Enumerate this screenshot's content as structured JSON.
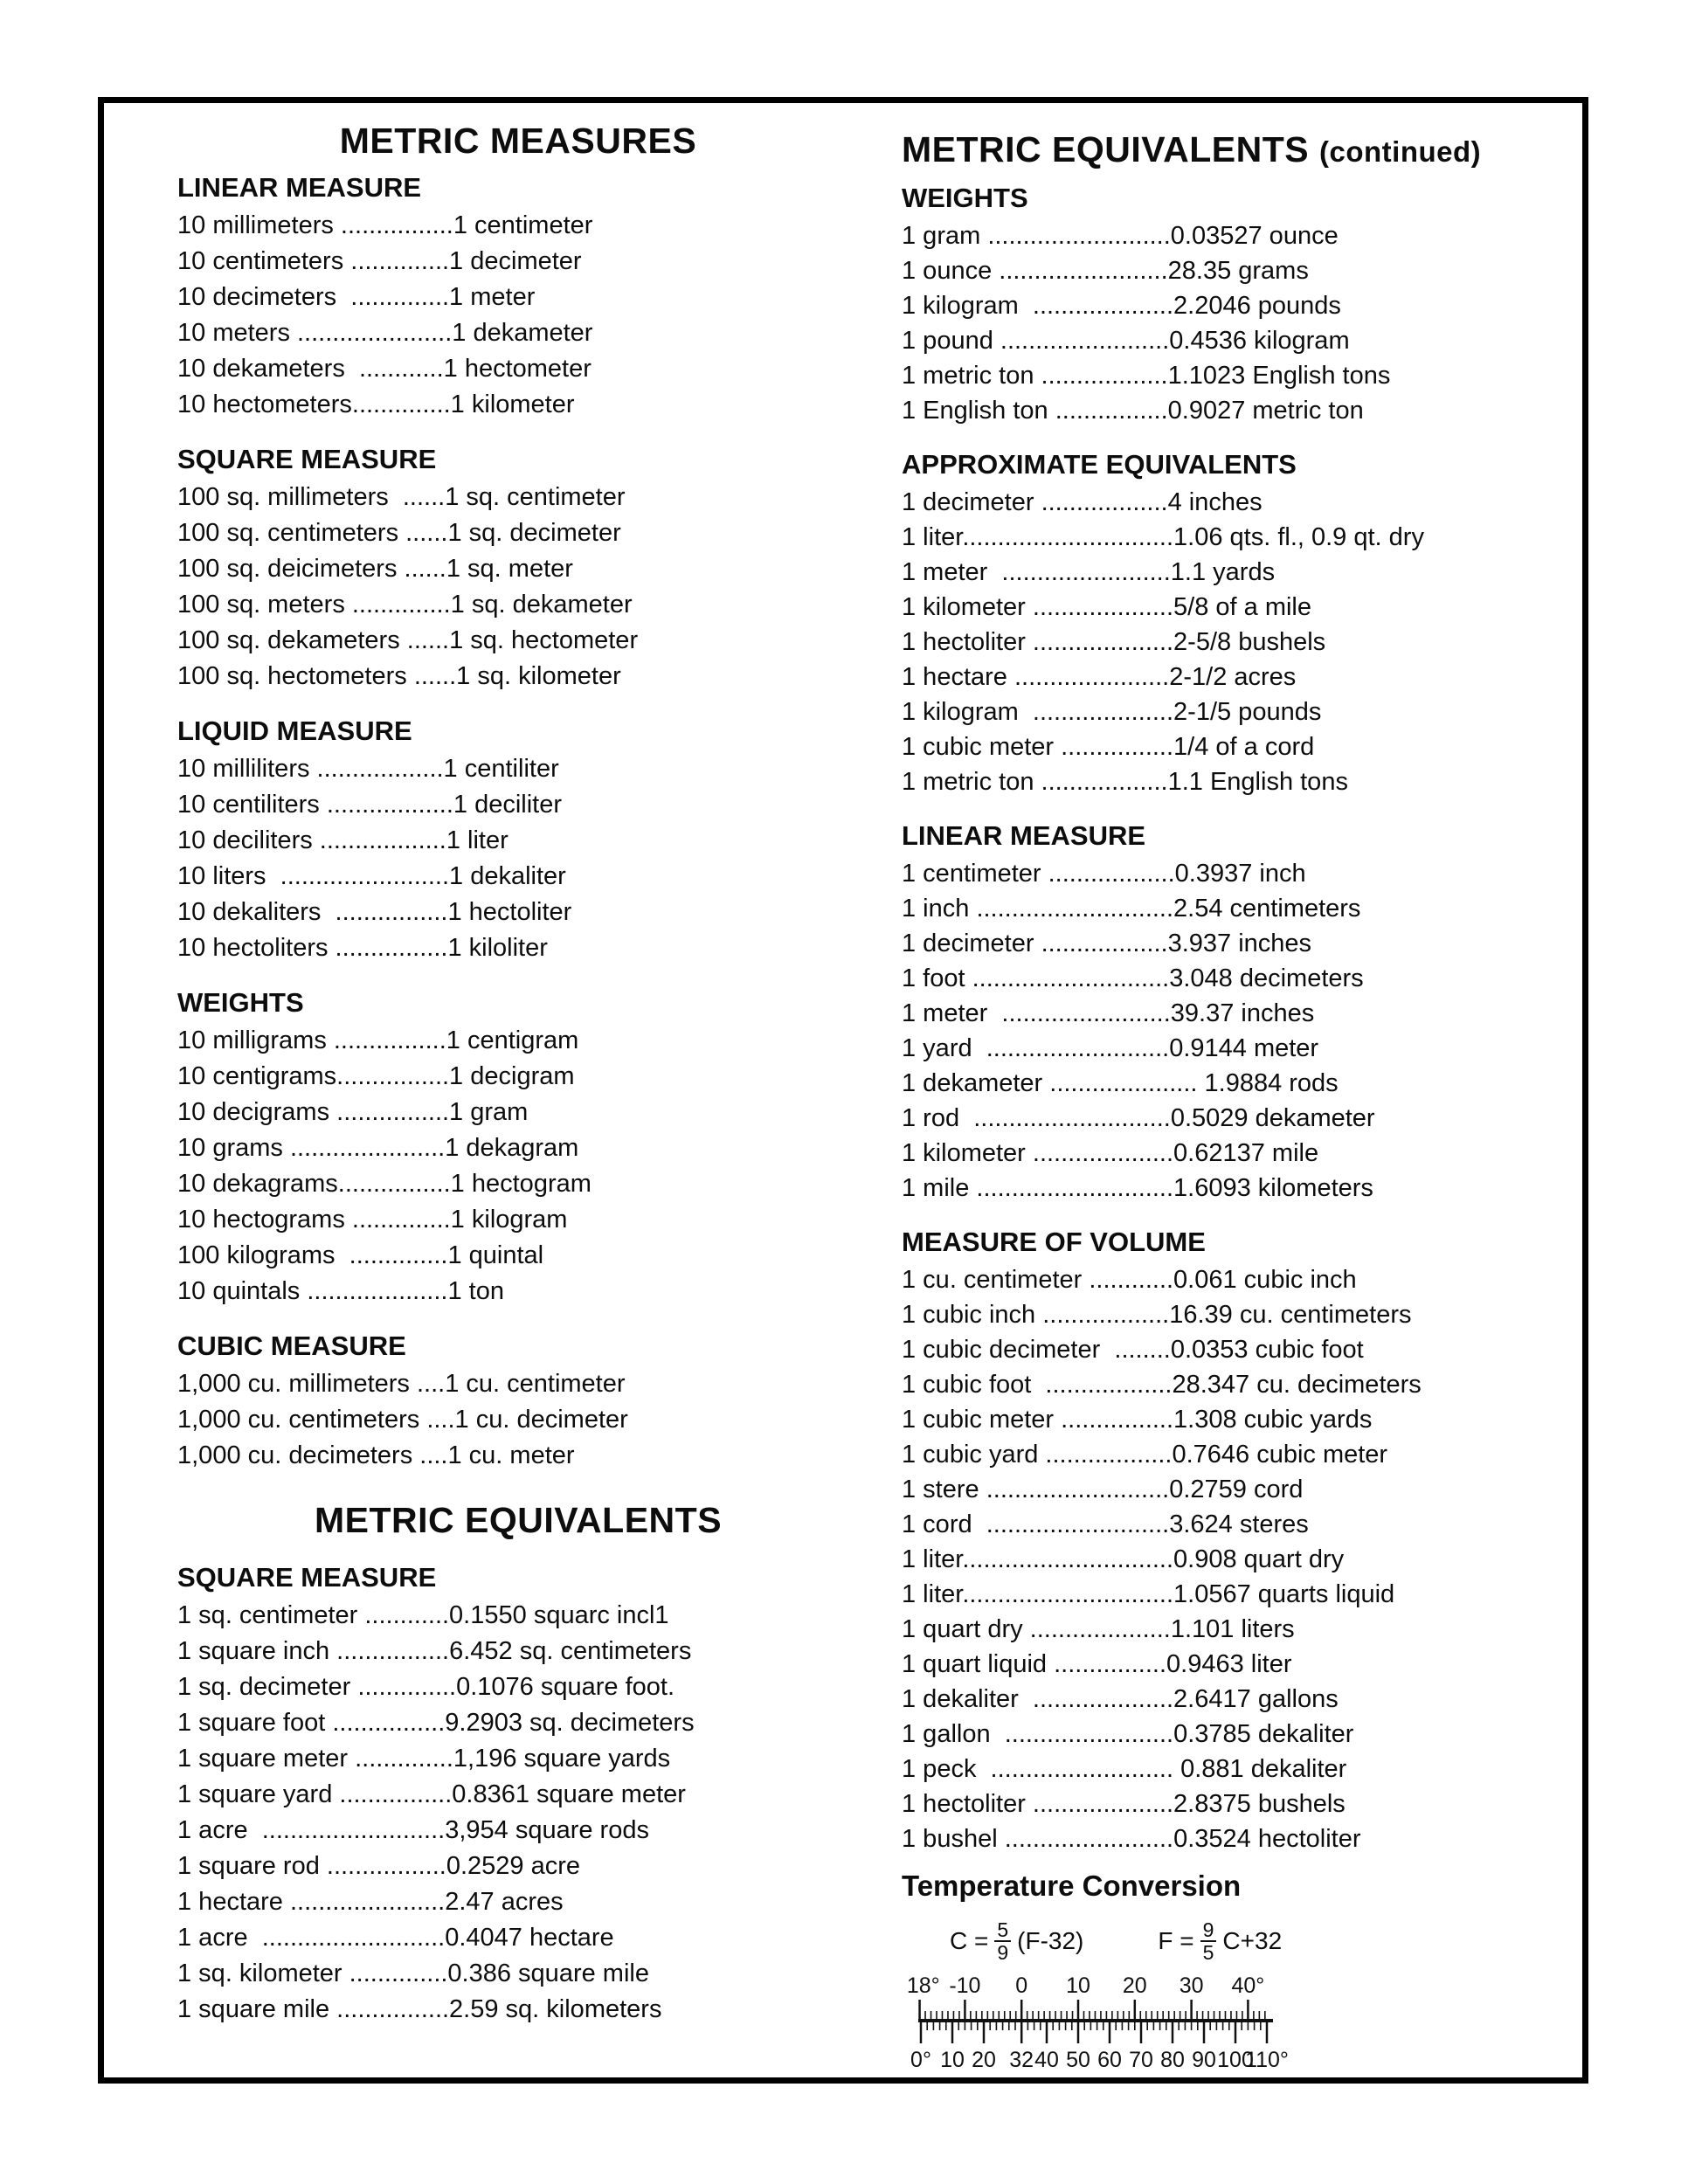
{
  "left": {
    "title": "METRIC MEASURES",
    "sections": [
      {
        "heading": "LINEAR MEASURE",
        "lines": [
          "10 millimeters ................1 centimeter",
          "10 centimeters ..............1 decimeter",
          "10 decimeters  ..............1 meter",
          "10 meters ......................1 dekameter",
          "10 dekameters  ............1 hectometer",
          "10 hectometers..............1 kilometer"
        ]
      },
      {
        "heading": "SQUARE MEASURE",
        "lines": [
          "100 sq. millimeters  ......1 sq. centimeter",
          "100 sq. centimeters ......1 sq. decimeter",
          "100 sq. deicimeters ......1 sq. meter",
          "100 sq. meters ..............1 sq. dekameter",
          "100 sq. dekameters ......1 sq. hectometer",
          "100 sq. hectometers ......1 sq. kilometer"
        ]
      },
      {
        "heading": "LIQUID MEASURE",
        "lines": [
          "10 milliliters ..................1 centiliter",
          "10 centiliters ..................1 deciliter",
          "10 deciliters ..................1 liter",
          "10 liters  ........................1 dekaliter",
          "10 dekaliters  ................1 hectoliter",
          "10 hectoliters ................1 kiloliter"
        ]
      },
      {
        "heading": "WEIGHTS",
        "lines": [
          "10 milligrams ................1 centigram",
          "10 centigrams................1 decigram",
          "10 decigrams ................1 gram",
          "10 grams ......................1 dekagram",
          "10 dekagrams................1 hectogram",
          "10 hectograms ..............1 kilogram",
          "100 kilograms  ..............1 quintal",
          "10 quintals ....................1 ton"
        ]
      },
      {
        "heading": "CUBIC MEASURE",
        "lines": [
          "1,000 cu. millimeters ....1 cu. centimeter",
          "1,000 cu. centimeters ....1 cu. decimeter",
          "1,000 cu. decimeters ....1 cu. meter"
        ]
      }
    ],
    "title2": "METRIC EQUIVALENTS",
    "sections2": [
      {
        "heading": "SQUARE MEASURE",
        "lines": [
          "1 sq. centimeter ............0.1550 squarc incl1",
          "1 square inch ................6.452 sq. centimeters",
          "1 sq. decimeter ..............0.1076 square foot.",
          "1 square foot ................9.2903 sq. decimeters",
          "1 square meter ..............1,196 square yards",
          "1 square yard ................0.8361 square meter",
          "1 acre  ..........................3,954 square rods",
          "1 square rod .................0.2529 acre",
          "1 hectare ......................2.47 acres",
          "1 acre  ..........................0.4047 hectare",
          "1 sq. kilometer ..............0.386 square mile",
          "1 square mile ................2.59 sq. kilometers"
        ]
      }
    ]
  },
  "right": {
    "title": "METRIC EQUIVALENTS",
    "title_suffix": "(continued)",
    "sections": [
      {
        "heading": "WEIGHTS",
        "lines": [
          "1 gram ..........................0.03527 ounce",
          "1 ounce ........................28.35 grams",
          "1 kilogram  ....................2.2046 pounds",
          "1 pound ........................0.4536 kilogram",
          "1 metric ton ..................1.1023 English tons",
          "1 English ton ................0.9027 metric ton"
        ]
      },
      {
        "heading": "APPROXIMATE EQUIVALENTS",
        "lines": [
          "1 decimeter ..................4 inches",
          "1 liter..............................1.06 qts. fl., 0.9 qt. dry",
          "1 meter  ........................1.1 yards",
          "1 kilometer ....................5/8 of a mile",
          "1 hectoliter ....................2-5/8 bushels",
          "1 hectare ......................2-1/2 acres",
          "1 kilogram  ....................2-1/5 pounds",
          "1 cubic meter ................1/4 of a cord",
          "1 metric ton ..................1.1 English tons"
        ]
      },
      {
        "heading": "LINEAR MEASURE",
        "lines": [
          "1 centimeter ..................0.3937 inch",
          "1 inch ............................2.54 centimeters",
          "1 decimeter ..................3.937 inches",
          "1 foot ............................3.048 decimeters",
          "1 meter  ........................39.37 inches",
          "1 yard  ..........................0.9144 meter",
          "1 dekameter ..................... 1.9884 rods",
          "1 rod  ............................0.5029 dekameter",
          "1 kilometer ....................0.62137 mile",
          "1 mile ............................1.6093 kilometers"
        ]
      },
      {
        "heading": "MEASURE OF VOLUME",
        "lines": [
          "1 cu. centimeter ............0.061 cubic inch",
          "1 cubic inch ..................16.39 cu. centimeters",
          "1 cubic decimeter  ........0.0353 cubic foot",
          "1 cubic foot  ..................28.347 cu. decimeters",
          "1 cubic meter ................1.308 cubic yards",
          "1 cubic yard ..................0.7646 cubic meter",
          "1 stere ..........................0.2759 cord",
          "1 cord  ..........................3.624 steres",
          "1 liter..............................0.908 quart dry",
          "1 liter..............................1.0567 quarts liquid",
          "1 quart dry ....................1.101 liters",
          "1 quart liquid ................0.9463 liter",
          "1 dekaliter  ....................2.6417 gallons",
          "1 gallon  ........................0.3785 dekaliter",
          "1 peck  .......................... 0.881 dekaliter",
          "1 hectoliter ....................2.8375 bushels",
          "1 bushel ........................0.3524 hectoliter"
        ]
      }
    ],
    "temperature": {
      "heading": "Temperature Conversion",
      "formulas": [
        {
          "lhs": "C =",
          "num": "5",
          "den": "9",
          "rhs": "(F-32)"
        },
        {
          "lhs": "F =",
          "num": "9",
          "den": "5",
          "rhs": "C+32"
        }
      ],
      "ruler": {
        "top_scale": "Celsius",
        "bottom_scale": "Fahrenheit",
        "fahrenheit_range": [
          0,
          110
        ],
        "top_labels": [
          {
            "v": -18,
            "t": "-18°"
          },
          {
            "v": -10,
            "t": "-10"
          },
          {
            "v": 0,
            "t": "0"
          },
          {
            "v": 10,
            "t": "10"
          },
          {
            "v": 20,
            "t": "20"
          },
          {
            "v": 30,
            "t": "30"
          },
          {
            "v": 40,
            "t": "40°"
          }
        ],
        "bottom_labels": [
          {
            "v": 0,
            "t": "0°"
          },
          {
            "v": 10,
            "t": "10"
          },
          {
            "v": 20,
            "t": "20"
          },
          {
            "v": 32,
            "t": "32"
          },
          {
            "v": 40,
            "t": "40"
          },
          {
            "v": 50,
            "t": "50"
          },
          {
            "v": 60,
            "t": "60"
          },
          {
            "v": 70,
            "t": "70"
          },
          {
            "v": 80,
            "t": "80"
          },
          {
            "v": 90,
            "t": "90"
          },
          {
            "v": 100,
            "t": "100"
          },
          {
            "v": 110,
            "t": "110°"
          }
        ]
      }
    }
  }
}
